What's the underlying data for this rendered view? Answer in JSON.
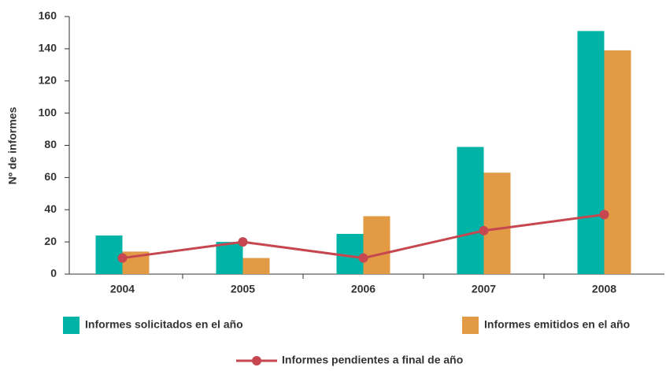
{
  "chart_data": {
    "type": "bar",
    "ylabel": "Nº de informes",
    "categories": [
      "2004",
      "2005",
      "2006",
      "2007",
      "2008"
    ],
    "series": [
      {
        "name": "Informes solicitados en el año",
        "color": "#00b3a7",
        "values": [
          24,
          20,
          25,
          79,
          151
        ]
      },
      {
        "name": "Informes emitidos en el año",
        "color": "#e29a45",
        "values": [
          14,
          10,
          36,
          63,
          139
        ]
      },
      {
        "name": "Informes pendientes a final de año",
        "color": "#c6474f",
        "type": "line",
        "values": [
          10,
          20,
          10,
          27,
          37
        ]
      }
    ],
    "ylim": [
      0,
      160
    ],
    "yticks": [
      0,
      20,
      40,
      60,
      80,
      100,
      120,
      140,
      160
    ],
    "grid": false
  }
}
